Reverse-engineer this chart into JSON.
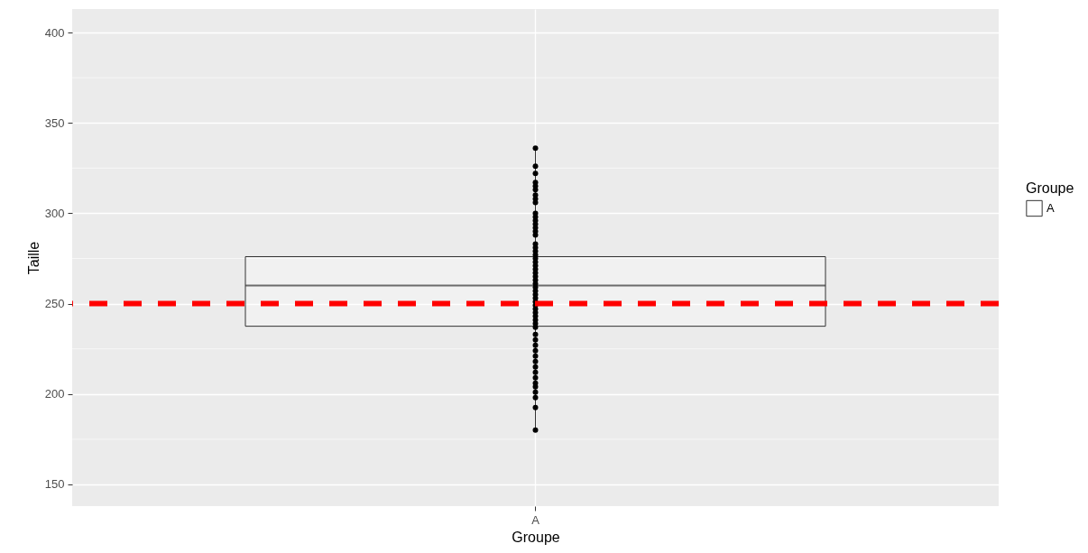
{
  "chart_data": {
    "type": "box",
    "xlabel": "Groupe",
    "ylabel": "Taille",
    "legend_title": "Groupe",
    "legend": "right",
    "grid": true,
    "categories": [
      "A"
    ],
    "ylim": [
      138,
      413
    ],
    "yticks": [
      150,
      200,
      250,
      300,
      350,
      400
    ],
    "series": [
      {
        "name": "A",
        "color": "#333333",
        "boxes": [
          {
            "low": 180,
            "q1": 237.5,
            "median": 260,
            "q3": 276,
            "high": 336
          }
        ]
      },
      {
        "type": "scatter",
        "color": "#000000",
        "marker": "circle",
        "x": [
          "A",
          "A",
          "A",
          "A",
          "A",
          "A",
          "A",
          "A",
          "A",
          "A",
          "A",
          "A",
          "A",
          "A",
          "A",
          "A",
          "A",
          "A",
          "A",
          "A",
          "A",
          "A",
          "A",
          "A",
          "A",
          "A",
          "A",
          "A",
          "A",
          "A",
          "A",
          "A",
          "A",
          "A",
          "A",
          "A",
          "A",
          "A",
          "A",
          "A",
          "A",
          "A",
          "A",
          "A",
          "A",
          "A",
          "A",
          "A",
          "A",
          "A",
          "A",
          "A",
          "A",
          "A",
          "A"
        ],
        "values": [
          336,
          326,
          322,
          317,
          315,
          313,
          310,
          308,
          306,
          300,
          298,
          296,
          294,
          292,
          290,
          288,
          283,
          281,
          279,
          277,
          275,
          273,
          271,
          269,
          267,
          265,
          263,
          261,
          259,
          257,
          255,
          253,
          251,
          249,
          247,
          245,
          243,
          241,
          239,
          237,
          233,
          230,
          227,
          224,
          221,
          218,
          215,
          212,
          209,
          206,
          204,
          201,
          198,
          192.5,
          180
        ]
      }
    ],
    "ref_lines": [
      {
        "axis": "y",
        "value": 250,
        "color": "#ff0000",
        "line_style": "dashed"
      }
    ]
  }
}
